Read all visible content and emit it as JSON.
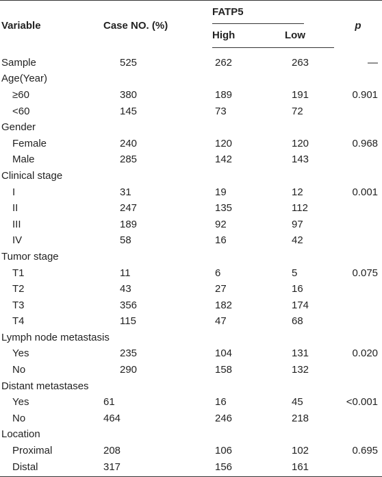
{
  "header": {
    "variable": "Variable",
    "case": "Case NO. (%)",
    "group": "FATP5",
    "high": "High",
    "low": "Low",
    "p": "p"
  },
  "rows": [
    {
      "label": "Sample",
      "case": "525",
      "high": "262",
      "low": "263",
      "p": "—"
    },
    {
      "label": "Age(Year)",
      "case": "",
      "high": "",
      "low": "",
      "p": ""
    },
    {
      "label": "≥60",
      "case": "380",
      "high": "189",
      "low": "191",
      "p": "0.901"
    },
    {
      "label": "<60",
      "case": "145",
      "high": "73",
      "low": "72",
      "p": ""
    },
    {
      "label": "Gender",
      "case": "",
      "high": "",
      "low": "",
      "p": ""
    },
    {
      "label": "Female",
      "case": "240",
      "high": "120",
      "low": "120",
      "p": "0.968"
    },
    {
      "label": "Male",
      "case": "285",
      "high": "142",
      "low": "143",
      "p": ""
    },
    {
      "label": "Clinical stage",
      "case": "",
      "high": "",
      "low": "",
      "p": ""
    },
    {
      "label": "I",
      "case": "31",
      "high": "19",
      "low": "12",
      "p": "0.001"
    },
    {
      "label": "II",
      "case": "247",
      "high": "135",
      "low": "112",
      "p": ""
    },
    {
      "label": "III",
      "case": "189",
      "high": "92",
      "low": "97",
      "p": ""
    },
    {
      "label": "IV",
      "case": "58",
      "high": "16",
      "low": "42",
      "p": ""
    },
    {
      "label": "Tumor stage",
      "case": "",
      "high": "",
      "low": "",
      "p": ""
    },
    {
      "label": "T1",
      "case": "11",
      "high": "6",
      "low": "5",
      "p": "0.075"
    },
    {
      "label": "T2",
      "case": "43",
      "high": "27",
      "low": "16",
      "p": ""
    },
    {
      "label": "T3",
      "case": "356",
      "high": "182",
      "low": "174",
      "p": ""
    },
    {
      "label": "T4",
      "case": "115",
      "high": "47",
      "low": "68",
      "p": ""
    },
    {
      "label": "Lymph node metastasis",
      "case": "",
      "high": "",
      "low": "",
      "p": ""
    },
    {
      "label": "Yes",
      "case": "235",
      "high": "104",
      "low": "131",
      "p": "0.020"
    },
    {
      "label": "No",
      "case": "290",
      "high": "158",
      "low": "132",
      "p": ""
    },
    {
      "label": "Distant metastases",
      "case": "",
      "high": "",
      "low": "",
      "p": ""
    },
    {
      "label": "Yes",
      "case": "61",
      "high": "16",
      "low": "45",
      "p": "<0.001"
    },
    {
      "label": "No",
      "case": "464",
      "high": "246",
      "low": "218",
      "p": ""
    },
    {
      "label": "Location",
      "case": "",
      "high": "",
      "low": "",
      "p": ""
    },
    {
      "label": "Proximal",
      "case": "208",
      "high": "106",
      "low": "102",
      "p": "0.695"
    },
    {
      "label": "Distal",
      "case": "317",
      "high": "156",
      "low": "161",
      "p": ""
    }
  ]
}
